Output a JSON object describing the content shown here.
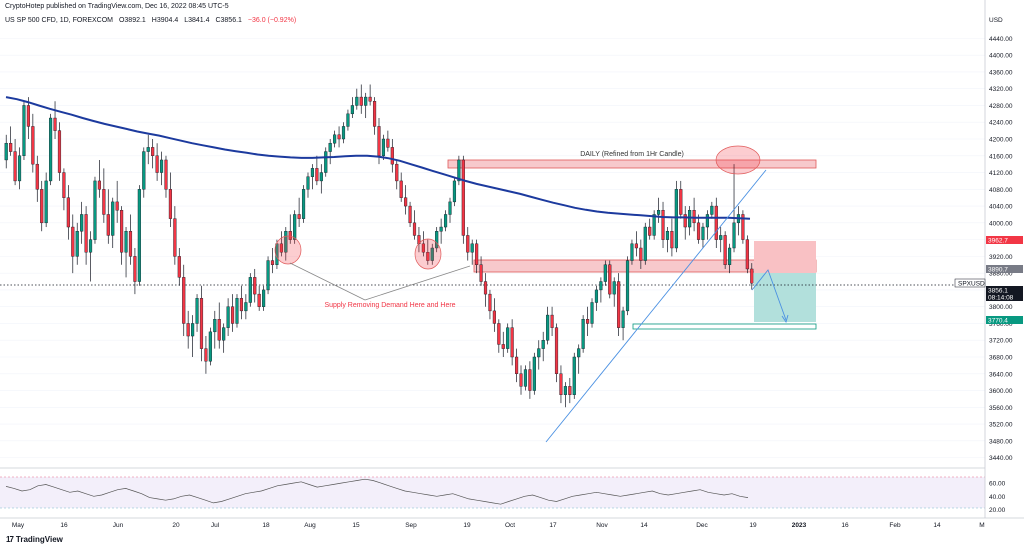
{
  "header": {
    "published_by": "CryptoHotep published on TradingView.com, Dec 16, 2022 08:45 UTC-5",
    "symbol": "US SP 500 CFD, 1D, FOREXCOM",
    "open": "O3892.1",
    "high": "H3904.4",
    "low": "L3841.4",
    "close": "C3856.1",
    "change": "−36.0 (−0.92%)"
  },
  "footer": {
    "brand": "TradingView",
    "logo": "17"
  },
  "price_axis": {
    "currency": "USD",
    "ticks": [
      "4440.00",
      "4400.00",
      "4360.00",
      "4320.00",
      "4280.00",
      "4240.00",
      "4200.00",
      "4160.00",
      "4120.00",
      "4080.00",
      "4040.00",
      "4000.00",
      "3960.00",
      "3920.00",
      "3880.00",
      "3840.00",
      "3800.00",
      "3760.00",
      "3720.00",
      "3680.00",
      "3640.00",
      "3600.00",
      "3560.00",
      "3520.00",
      "3480.00",
      "3440.00"
    ],
    "labels": [
      {
        "text": "3962.7",
        "color": "#f23645"
      },
      {
        "text": "3890.7",
        "color": "#787b86"
      },
      {
        "text": "SPXUSD",
        "color": "#131722"
      },
      {
        "text": "3856.1",
        "color": "#131722"
      },
      {
        "text": "08:14:08",
        "color": "#131722"
      },
      {
        "text": "3770.4",
        "color": "#089981"
      }
    ]
  },
  "rsi_axis": {
    "ticks": [
      "60.00",
      "40.00",
      "20.00"
    ]
  },
  "time_axis": {
    "ticks": [
      "May",
      "16",
      "Jun",
      "20",
      "Jul",
      "18",
      "Aug",
      "15",
      "Sep",
      "19",
      "Oct",
      "17",
      "Nov",
      "14",
      "Dec",
      "19",
      "2023",
      "16",
      "Feb",
      "14",
      "M"
    ]
  },
  "annotations": {
    "daily_zone": "DAILY (Refined from 1Hr Candle)",
    "supply_note": "Supply Removing Demand Here and Here"
  },
  "colors": {
    "up": "#089981",
    "down": "#f23645",
    "ma": "#1c3a9e",
    "zone_fill": "#f7c9cc",
    "zone_stroke": "#e05a5a",
    "target_fill": "#b2e0dc",
    "stop_fill": "#f9c1c4",
    "trendline": "#4a90e2",
    "rsi_line": "#555555",
    "rsi_band": "#f3effa"
  },
  "chart_data": {
    "type": "candlestick",
    "ylim": [
      3420,
      4460
    ],
    "y_grid_step": 40,
    "current_price": 3856.1,
    "candles": [
      [
        4150,
        4210,
        4130,
        4190
      ],
      [
        4190,
        4230,
        4160,
        4170
      ],
      [
        4170,
        4200,
        4090,
        4100
      ],
      [
        4100,
        4180,
        4080,
        4160
      ],
      [
        4160,
        4290,
        4150,
        4280
      ],
      [
        4280,
        4300,
        4200,
        4230
      ],
      [
        4230,
        4260,
        4120,
        4140
      ],
      [
        4140,
        4160,
        4050,
        4080
      ],
      [
        4080,
        4100,
        3980,
        4000
      ],
      [
        4000,
        4120,
        3990,
        4100
      ],
      [
        4100,
        4260,
        4090,
        4250
      ],
      [
        4250,
        4290,
        4200,
        4220
      ],
      [
        4220,
        4240,
        4100,
        4120
      ],
      [
        4120,
        4130,
        4030,
        4060
      ],
      [
        4060,
        4090,
        3960,
        3990
      ],
      [
        3990,
        4020,
        3880,
        3920
      ],
      [
        3920,
        4000,
        3900,
        3980
      ],
      [
        3980,
        4050,
        3950,
        4020
      ],
      [
        4020,
        4040,
        3900,
        3930
      ],
      [
        3930,
        3980,
        3860,
        3960
      ],
      [
        3960,
        4110,
        3950,
        4100
      ],
      [
        4100,
        4150,
        4060,
        4080
      ],
      [
        4080,
        4130,
        4000,
        4020
      ],
      [
        4020,
        4080,
        3950,
        3970
      ],
      [
        3970,
        4060,
        3940,
        4050
      ],
      [
        4050,
        4100,
        4000,
        4030
      ],
      [
        4030,
        4040,
        3900,
        3930
      ],
      [
        3930,
        3990,
        3870,
        3980
      ],
      [
        3980,
        4020,
        3900,
        3920
      ],
      [
        3920,
        3940,
        3830,
        3860
      ],
      [
        3860,
        4090,
        3850,
        4080
      ],
      [
        4080,
        4180,
        4060,
        4170
      ],
      [
        4170,
        4210,
        4140,
        4180
      ],
      [
        4180,
        4200,
        4130,
        4160
      ],
      [
        4160,
        4190,
        4100,
        4120
      ],
      [
        4120,
        4170,
        4090,
        4150
      ],
      [
        4150,
        4160,
        4060,
        4080
      ],
      [
        4080,
        4120,
        3990,
        4010
      ],
      [
        4010,
        4040,
        3900,
        3920
      ],
      [
        3920,
        3940,
        3850,
        3870
      ],
      [
        3870,
        3900,
        3730,
        3760
      ],
      [
        3760,
        3790,
        3700,
        3730
      ],
      [
        3730,
        3780,
        3680,
        3760
      ],
      [
        3760,
        3830,
        3740,
        3820
      ],
      [
        3820,
        3850,
        3670,
        3700
      ],
      [
        3700,
        3730,
        3640,
        3670
      ],
      [
        3670,
        3750,
        3660,
        3740
      ],
      [
        3740,
        3790,
        3700,
        3770
      ],
      [
        3770,
        3810,
        3700,
        3720
      ],
      [
        3720,
        3760,
        3690,
        3750
      ],
      [
        3750,
        3820,
        3730,
        3800
      ],
      [
        3800,
        3830,
        3740,
        3760
      ],
      [
        3760,
        3830,
        3750,
        3820
      ],
      [
        3820,
        3850,
        3770,
        3790
      ],
      [
        3790,
        3830,
        3770,
        3810
      ],
      [
        3810,
        3880,
        3800,
        3870
      ],
      [
        3870,
        3890,
        3810,
        3830
      ],
      [
        3830,
        3850,
        3790,
        3800
      ],
      [
        3800,
        3850,
        3790,
        3840
      ],
      [
        3840,
        3920,
        3830,
        3910
      ],
      [
        3910,
        3940,
        3880,
        3900
      ],
      [
        3900,
        3960,
        3890,
        3950
      ],
      [
        3950,
        3980,
        3920,
        3930
      ],
      [
        3930,
        3990,
        3910,
        3980
      ],
      [
        3980,
        4020,
        3950,
        3960
      ],
      [
        3960,
        4030,
        3950,
        4020
      ],
      [
        4020,
        4060,
        3990,
        4010
      ],
      [
        4010,
        4090,
        4000,
        4080
      ],
      [
        4080,
        4120,
        4060,
        4110
      ],
      [
        4110,
        4140,
        4080,
        4130
      ],
      [
        4130,
        4160,
        4090,
        4100
      ],
      [
        4100,
        4140,
        4070,
        4120
      ],
      [
        4120,
        4180,
        4110,
        4170
      ],
      [
        4170,
        4200,
        4140,
        4190
      ],
      [
        4190,
        4220,
        4180,
        4210
      ],
      [
        4210,
        4230,
        4180,
        4200
      ],
      [
        4200,
        4240,
        4190,
        4230
      ],
      [
        4230,
        4270,
        4220,
        4260
      ],
      [
        4260,
        4300,
        4250,
        4280
      ],
      [
        4280,
        4320,
        4270,
        4300
      ],
      [
        4300,
        4330,
        4260,
        4280
      ],
      [
        4280,
        4310,
        4250,
        4300
      ],
      [
        4300,
        4330,
        4280,
        4290
      ],
      [
        4290,
        4300,
        4210,
        4230
      ],
      [
        4230,
        4250,
        4140,
        4160
      ],
      [
        4160,
        4210,
        4150,
        4200
      ],
      [
        4200,
        4220,
        4170,
        4180
      ],
      [
        4180,
        4200,
        4120,
        4140
      ],
      [
        4140,
        4150,
        4080,
        4100
      ],
      [
        4100,
        4120,
        4050,
        4060
      ],
      [
        4060,
        4090,
        4020,
        4040
      ],
      [
        4040,
        4050,
        3990,
        4000
      ],
      [
        4000,
        4030,
        3960,
        3970
      ],
      [
        3970,
        3990,
        3930,
        3950
      ],
      [
        3950,
        3980,
        3920,
        3930
      ],
      [
        3930,
        3960,
        3900,
        3910
      ],
      [
        3910,
        3950,
        3900,
        3940
      ],
      [
        3940,
        3990,
        3930,
        3980
      ],
      [
        3980,
        4010,
        3950,
        3990
      ],
      [
        3990,
        4030,
        3980,
        4020
      ],
      [
        4020,
        4060,
        4000,
        4050
      ],
      [
        4050,
        4110,
        4040,
        4100
      ],
      [
        4100,
        4160,
        4090,
        4150
      ],
      [
        4150,
        4160,
        3950,
        3970
      ],
      [
        3970,
        3990,
        3910,
        3930
      ],
      [
        3930,
        3960,
        3900,
        3950
      ],
      [
        3950,
        3960,
        3880,
        3900
      ],
      [
        3900,
        3920,
        3850,
        3860
      ],
      [
        3860,
        3880,
        3800,
        3830
      ],
      [
        3830,
        3840,
        3770,
        3790
      ],
      [
        3790,
        3820,
        3740,
        3760
      ],
      [
        3760,
        3770,
        3690,
        3710
      ],
      [
        3710,
        3740,
        3680,
        3700
      ],
      [
        3700,
        3760,
        3690,
        3750
      ],
      [
        3750,
        3770,
        3660,
        3680
      ],
      [
        3680,
        3700,
        3620,
        3640
      ],
      [
        3640,
        3660,
        3590,
        3610
      ],
      [
        3610,
        3660,
        3600,
        3650
      ],
      [
        3650,
        3670,
        3580,
        3600
      ],
      [
        3600,
        3690,
        3590,
        3680
      ],
      [
        3680,
        3720,
        3650,
        3700
      ],
      [
        3700,
        3740,
        3670,
        3720
      ],
      [
        3720,
        3800,
        3710,
        3780
      ],
      [
        3780,
        3800,
        3730,
        3750
      ],
      [
        3750,
        3760,
        3620,
        3640
      ],
      [
        3640,
        3660,
        3570,
        3590
      ],
      [
        3590,
        3620,
        3560,
        3610
      ],
      [
        3610,
        3630,
        3570,
        3590
      ],
      [
        3590,
        3690,
        3580,
        3680
      ],
      [
        3680,
        3710,
        3640,
        3700
      ],
      [
        3700,
        3780,
        3690,
        3770
      ],
      [
        3770,
        3800,
        3730,
        3760
      ],
      [
        3760,
        3820,
        3750,
        3810
      ],
      [
        3810,
        3850,
        3790,
        3840
      ],
      [
        3840,
        3870,
        3810,
        3860
      ],
      [
        3860,
        3910,
        3850,
        3900
      ],
      [
        3900,
        3910,
        3820,
        3830
      ],
      [
        3830,
        3870,
        3800,
        3860
      ],
      [
        3860,
        3880,
        3730,
        3750
      ],
      [
        3750,
        3800,
        3720,
        3790
      ],
      [
        3790,
        3920,
        3780,
        3910
      ],
      [
        3910,
        3960,
        3900,
        3950
      ],
      [
        3950,
        3980,
        3920,
        3940
      ],
      [
        3940,
        3960,
        3890,
        3910
      ],
      [
        3910,
        4000,
        3900,
        3990
      ],
      [
        3990,
        4010,
        3960,
        3970
      ],
      [
        3970,
        4030,
        3960,
        4020
      ],
      [
        4020,
        4060,
        4000,
        4030
      ],
      [
        4030,
        4050,
        3940,
        3960
      ],
      [
        3960,
        3990,
        3930,
        3980
      ],
      [
        3980,
        4010,
        3920,
        3940
      ],
      [
        3940,
        4100,
        3930,
        4080
      ],
      [
        4080,
        4100,
        4010,
        4020
      ],
      [
        4020,
        4040,
        3960,
        3990
      ],
      [
        3990,
        4040,
        3970,
        4030
      ],
      [
        4030,
        4060,
        3980,
        4000
      ],
      [
        4000,
        4020,
        3950,
        3960
      ],
      [
        3960,
        4000,
        3940,
        3990
      ],
      [
        3990,
        4030,
        3960,
        4020
      ],
      [
        4020,
        4050,
        4010,
        4040
      ],
      [
        4040,
        4060,
        3940,
        3960
      ],
      [
        3960,
        3990,
        3930,
        3970
      ],
      [
        3970,
        3980,
        3890,
        3900
      ],
      [
        3900,
        3950,
        3880,
        3940
      ],
      [
        3940,
        4140,
        3930,
        4000
      ],
      [
        4000,
        4040,
        3970,
        4020
      ],
      [
        4020,
        4030,
        3950,
        3960
      ],
      [
        3960,
        3970,
        3880,
        3890
      ],
      [
        3890,
        3904,
        3841,
        3856
      ]
    ],
    "moving_average": [
      4300,
      4295,
      4288,
      4280,
      4272,
      4265,
      4258,
      4250,
      4243,
      4236,
      4230,
      4224,
      4218,
      4213,
      4208,
      4202,
      4196,
      4190,
      4185,
      4180,
      4175,
      4171,
      4167,
      4163,
      4160,
      4158,
      4156,
      4155,
      4155,
      4156,
      4157,
      4159,
      4160,
      4160,
      4158,
      4154,
      4148,
      4140,
      4132,
      4124,
      4116,
      4108,
      4100,
      4093,
      4087,
      4081,
      4075,
      4069,
      4062,
      4055,
      4048,
      4042,
      4036,
      4031,
      4027,
      4024,
      4022,
      4020,
      4018,
      4016,
      4014,
      4013,
      4013,
      4012,
      4012,
      4012,
      4012,
      4011,
      4010
    ],
    "rsi": [
      55,
      52,
      48,
      50,
      56,
      58,
      54,
      50,
      46,
      48,
      44,
      40,
      42,
      46,
      50,
      52,
      48,
      44,
      38,
      36,
      34,
      36,
      40,
      42,
      38,
      34,
      30,
      32,
      36,
      40,
      44,
      46,
      48,
      52,
      56,
      58,
      60,
      62,
      58,
      54,
      56,
      58,
      60,
      62,
      64,
      66,
      64,
      60,
      56,
      52,
      48,
      46,
      44,
      42,
      40,
      42,
      44,
      40,
      36,
      34,
      32,
      30,
      28,
      32,
      36,
      40,
      42,
      38,
      34,
      32,
      36,
      40,
      42,
      44,
      46,
      44,
      42,
      40,
      42,
      44,
      46,
      48,
      44,
      42,
      44,
      46,
      48,
      50,
      46,
      44,
      42,
      44,
      40,
      38
    ]
  }
}
